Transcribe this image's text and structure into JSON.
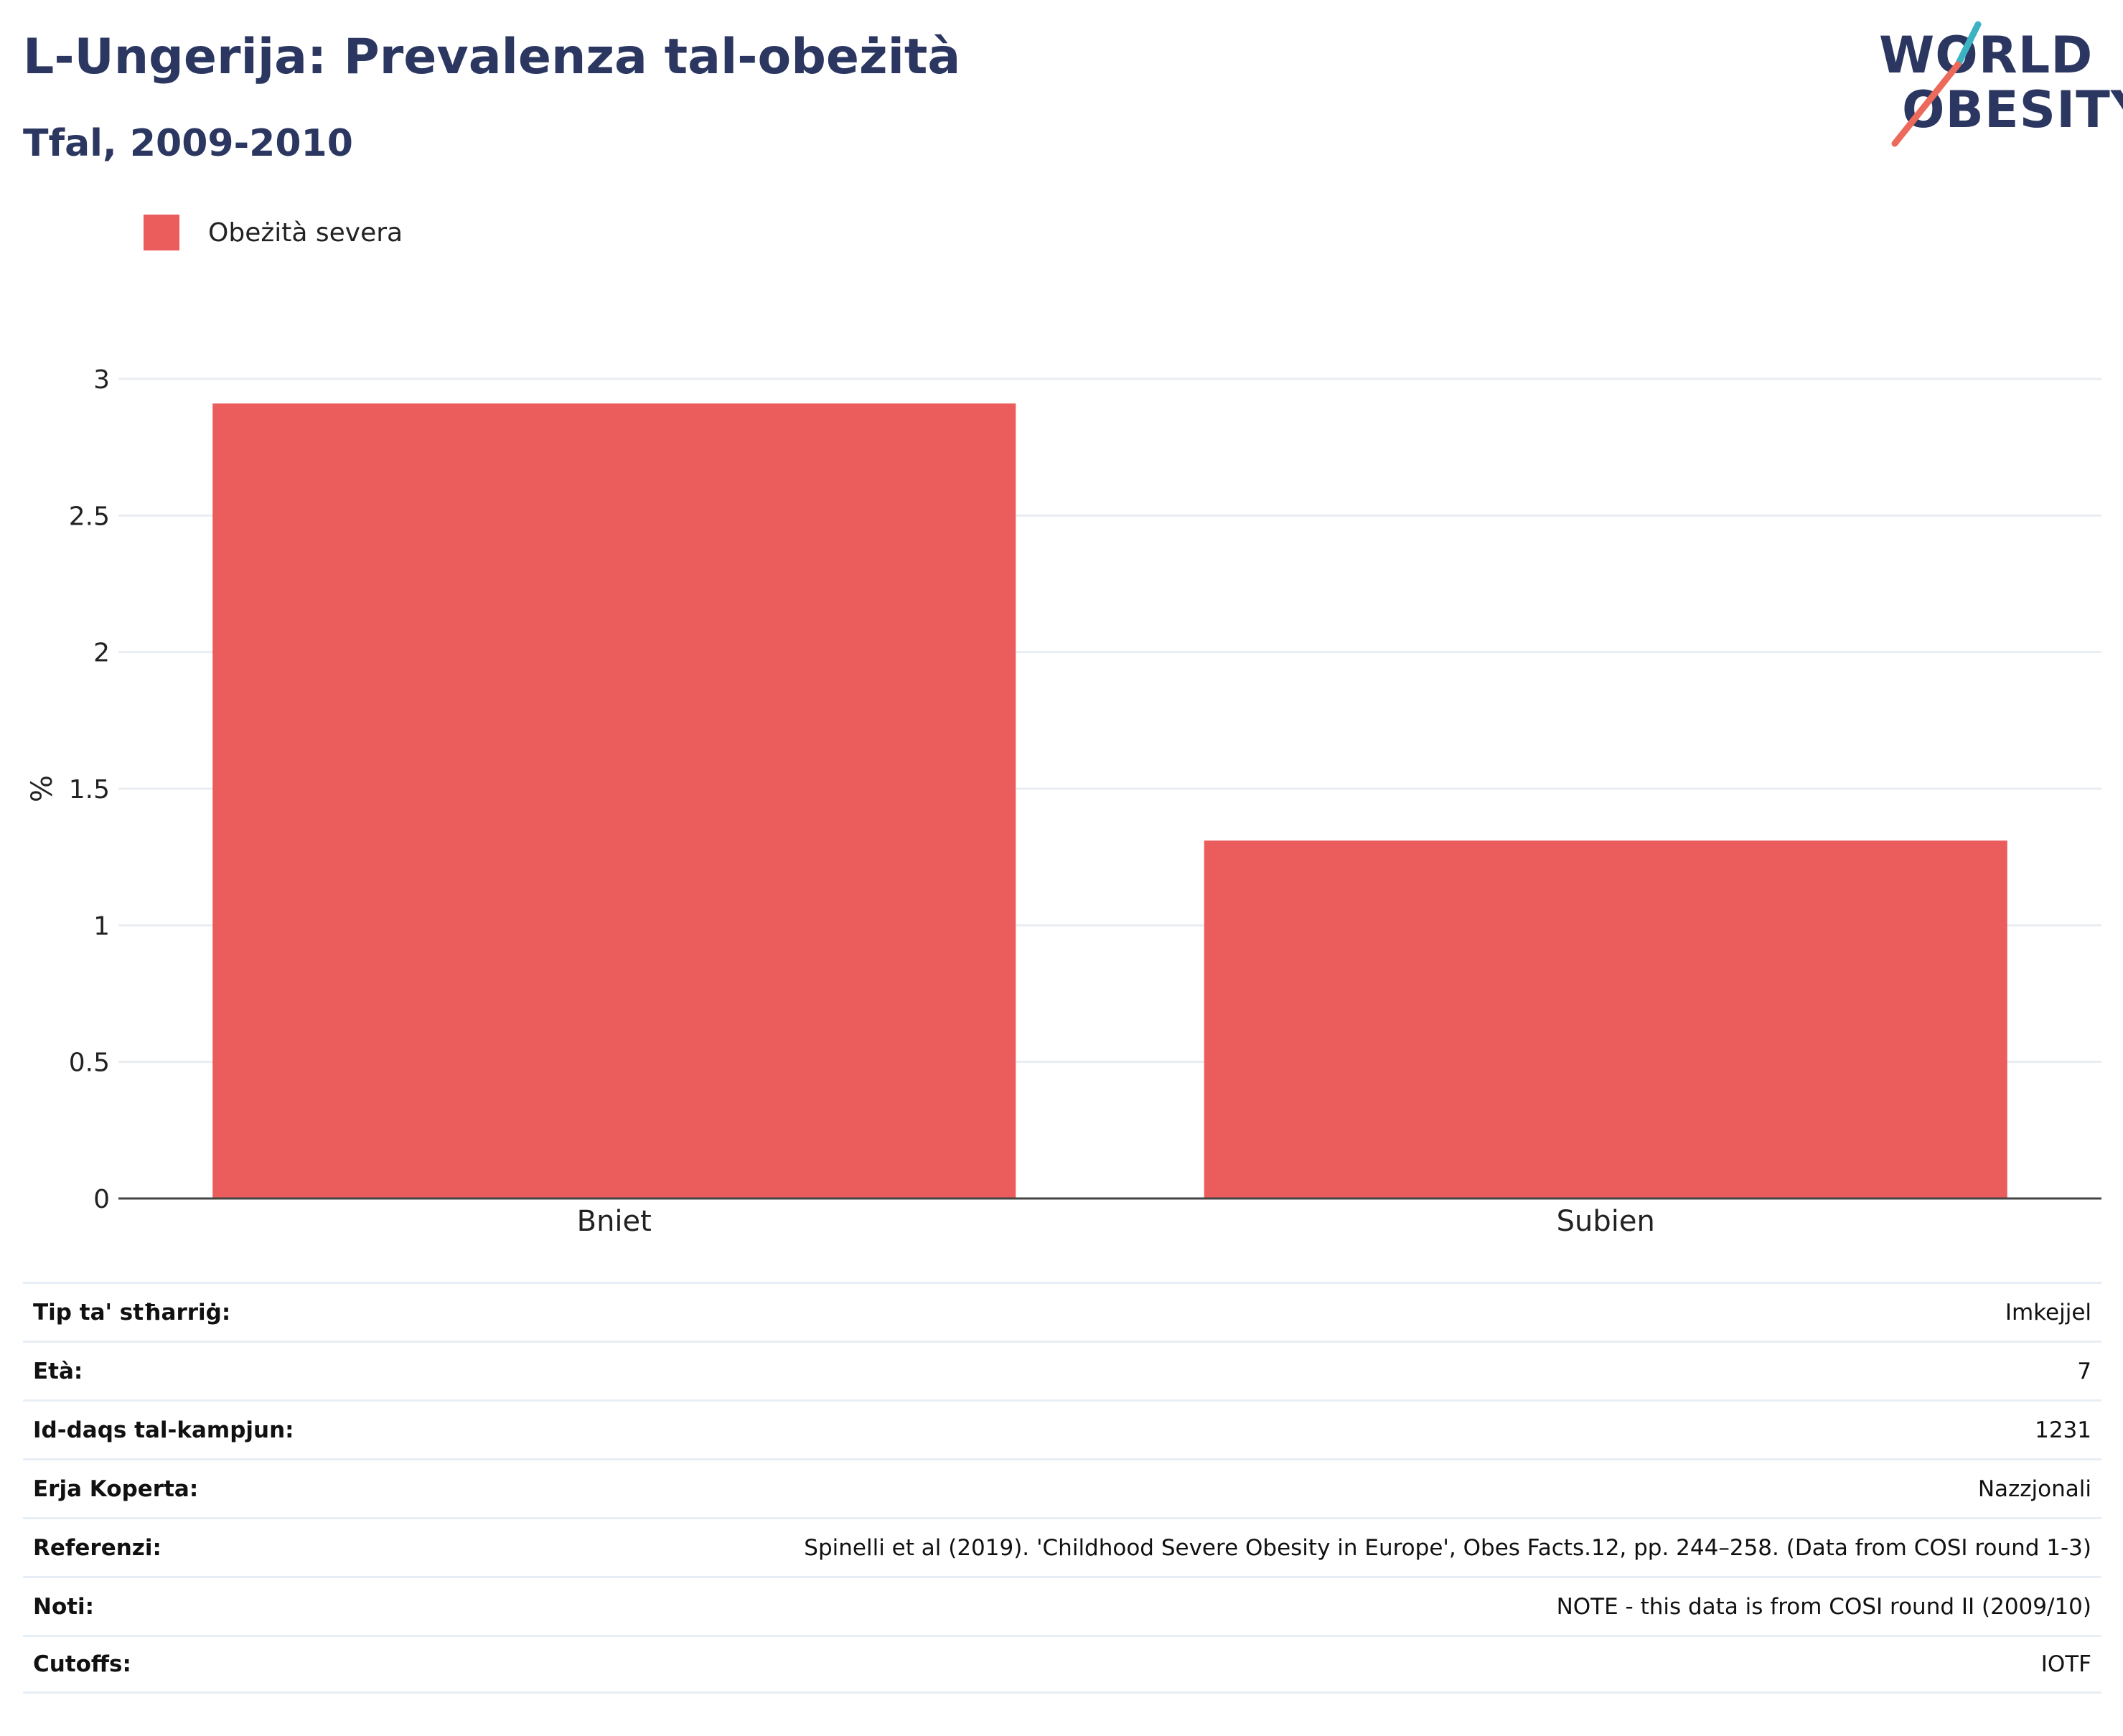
{
  "header": {
    "title": "L-Ungerija: Prevalenza tal-obeżità",
    "subtitle": "Tfal, 2009-2010"
  },
  "logo": {
    "line1": "WORLD",
    "line2": "OBESITY",
    "accent_teal": "#3bb3c3",
    "accent_coral": "#ec6a5c",
    "text_color": "#2b3760"
  },
  "legend": {
    "position": "top-left",
    "items": [
      {
        "label": "Obeżità severa",
        "color": "#eb5c5c"
      }
    ]
  },
  "chart_data": {
    "type": "bar",
    "categories": [
      "Bniet",
      "Subien"
    ],
    "series": [
      {
        "name": "Obeżità severa",
        "values": [
          2.91,
          1.31
        ],
        "color": "#eb5c5c"
      }
    ],
    "ylabel": "%",
    "ylim": [
      0,
      3
    ],
    "yticks": [
      {
        "value": 0,
        "label": "0"
      },
      {
        "value": 0.5,
        "label": "0.5"
      },
      {
        "value": 1,
        "label": "1"
      },
      {
        "value": 1.5,
        "label": "1.5"
      },
      {
        "value": 2,
        "label": "2"
      },
      {
        "value": 2.5,
        "label": "2.5"
      },
      {
        "value": 3,
        "label": "3"
      }
    ],
    "grid": true
  },
  "info": [
    {
      "key": "Tip ta' stħarriġ:",
      "value": "Imkejjel"
    },
    {
      "key": "Età:",
      "value": "7"
    },
    {
      "key": "Id-daqs tal-kampjun:",
      "value": "1231"
    },
    {
      "key": "Erja Koperta:",
      "value": "Nazzjonali"
    },
    {
      "key": "Referenzi:",
      "value": "Spinelli et al (2019). 'Childhood Severe Obesity in Europe', Obes Facts.12, pp. 244–258. (Data from COSI round 1-3)"
    },
    {
      "key": "Noti:",
      "value": "NOTE - this data is from COSI round II (2009/10)"
    },
    {
      "key": "Cutoffs:",
      "value": "IOTF"
    }
  ]
}
